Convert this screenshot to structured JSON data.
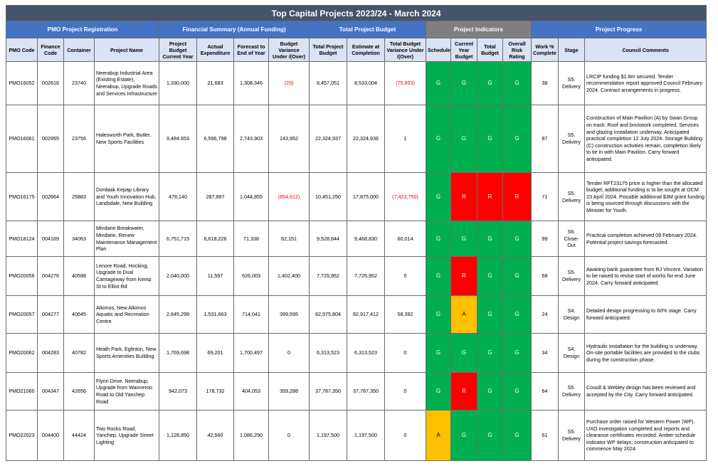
{
  "title": "Top Capital Projects 2023/24 - March 2024",
  "groups": {
    "registration": "PMO Project Registration",
    "financial": "Financial Summary (Annual Funding)",
    "total_budget": "Total Project Budget",
    "indicators": "Project Indicators",
    "progress": "Project Progress"
  },
  "columns": {
    "pmo_code": "PMO Code",
    "finance_code": "Finance Code",
    "container": "Container",
    "project_name": "Project Name",
    "budget_cy": "Project Budget Current Year",
    "actual": "Actual Expenditure",
    "forecast": "Forecast to End of Year",
    "variance": "Budget Variance Under /(Over)",
    "total_budget": "Total Project Budget",
    "estimate": "Estimate at Completion",
    "total_variance": "Total Budget Variance Under /(Over)",
    "schedule": "Schedule",
    "cy_budget": "Current Year Budget",
    "tot_budget": "Total Budget",
    "risk": "Overall Risk Rating",
    "work": "Work % Complete",
    "stage": "Stage",
    "comments": "Council Comments"
  },
  "indicator_colors": {
    "G": "#00b050",
    "R": "#ff0000",
    "A": "#ffc000"
  },
  "rows": [
    {
      "pmo": "PMO16052",
      "fin": "002616",
      "cont": "23740",
      "name": "Neerabup Industrial Area (Existing Estate), Neerabup, Upgrade Roads and Services Infrastructure",
      "bcy": "1,330,000",
      "act": "21,683",
      "fc": "1,308,346",
      "var": "(29)",
      "var_neg": true,
      "tpb": "8,457,051",
      "eac": "8,533,004",
      "tvar": "(75,953)",
      "tvar_neg": true,
      "sch": "G",
      "cyb": "G",
      "tb": "G",
      "risk": "G",
      "work": "38",
      "stage": "S5. Delivery",
      "comments": "LRCIP funding $1.8m secured. Tender recommendation report approved Council February 2024. Contract arrangements in progress."
    },
    {
      "pmo": "PMO16061",
      "fin": "002955",
      "cont": "23756",
      "name": "Halesworth Park, Butler, New Sports Facilities",
      "bcy": "9,484,653",
      "act": "6,596,798",
      "fc": "2,743,903",
      "var": "143,952",
      "var_neg": false,
      "tpb": "22,324,937",
      "eac": "22,324,936",
      "tvar": "1",
      "tvar_neg": false,
      "sch": "G",
      "cyb": "G",
      "tb": "G",
      "risk": "G",
      "work": "87",
      "stage": "S5. Delivery",
      "comments": "Construction of Main Pavilion (A) by Swan Group on track. Roof and brickwork completed. Services and glazing installation underway. Anticipated practical completion 12 July 2024. Storage Building (C) construction activities remain, completion likely to tie in with Main Pavilion. Carry forward anticipated."
    },
    {
      "pmo": "PMO16175",
      "fin": "002664",
      "cont": "25883",
      "name": "Dordaak Kepap Library and Youth Innovation Hub, Landsdale, New Building",
      "bcy": "478,140",
      "act": "287,897",
      "fc": "1,044,855",
      "var": "(854,612)",
      "var_neg": true,
      "tpb": "10,451,250",
      "eac": "17,875,000",
      "tvar": "(7,423,750)",
      "tvar_neg": true,
      "sch": "G",
      "cyb": "R",
      "tb": "R",
      "risk": "R",
      "work": "71",
      "stage": "S5. Delivery",
      "comments": "Tender RFT23175 price is higher than the allocated budget; additional funding is to be sought at OCM 23 April 2024. Possible additional $3M grant funding is being sourced through discussions with the Minister for Youth."
    },
    {
      "pmo": "PMO18124",
      "fin": "004169",
      "cont": "34063",
      "name": "Mindarie Breakwater, Mindarie, Renew Maintenance Management Plan",
      "bcy": "6,751,715",
      "act": "6,618,226",
      "fc": "71,338",
      "var": "62,151",
      "var_neg": false,
      "tpb": "9,528,844",
      "eac": "9,468,830",
      "tvar": "60,014",
      "tvar_neg": false,
      "sch": "G",
      "cyb": "G",
      "tb": "G",
      "risk": "G",
      "work": "99",
      "stage": "S6. Close-Out",
      "comments": "Practical completion achieved 09 February 2024. Potential project savings forecasted."
    },
    {
      "pmo": "PMO20056",
      "fin": "004276",
      "cont": "40598",
      "name": "Lenore Road, Hocking, Upgrade to Dual Carriageway from Kemp St to Elliot Rd",
      "bcy": "2,040,000",
      "act": "11,597",
      "fc": "626,003",
      "var": "1,402,400",
      "var_neg": false,
      "tpb": "7,725,952",
      "eac": "7,725,952",
      "tvar": "0",
      "tvar_neg": false,
      "sch": "G",
      "cyb": "R",
      "tb": "G",
      "risk": "G",
      "work": "68",
      "stage": "S5. Delivery",
      "comments": "Awaiting bank guarantee from RJ Vincent. Variation to be raised to revise start of works for end June 2024. Carry forward anticipated."
    },
    {
      "pmo": "PMO20057",
      "fin": "004277",
      "cont": "40645",
      "name": "Alkimos, New Alkimos Aquatic and Recreation Centre",
      "bcy": "2,645,299",
      "act": "1,531,663",
      "fc": "714,041",
      "var": "399,595",
      "var_neg": false,
      "tpb": "82,975,804",
      "eac": "82,917,412",
      "tvar": "58,392",
      "tvar_neg": false,
      "sch": "G",
      "cyb": "A",
      "tb": "G",
      "risk": "G",
      "work": "24",
      "stage": "S4. Design",
      "comments": "Detailed design progressing to 60% stage. Carry forward anticipated."
    },
    {
      "pmo": "PMO20062",
      "fin": "004283",
      "cont": "40782",
      "name": "Heath Park, Eglinton, New Sports Amenities Building",
      "bcy": "1,769,698",
      "act": "69,201",
      "fc": "1,700,497",
      "var": "0",
      "var_neg": false,
      "tpb": "6,313,523",
      "eac": "6,313,523",
      "tvar": "0",
      "tvar_neg": false,
      "sch": "G",
      "cyb": "G",
      "tb": "G",
      "risk": "G",
      "work": "34",
      "stage": "S4. Design",
      "comments": "Hydraulic installation for the building is underway. On-site portable facilities are provided to the clubs during the construction phase."
    },
    {
      "pmo": "PMO21060",
      "fin": "004347",
      "cont": "42656",
      "name": "Flynn Drive, Neerabup, Upgrade from Wanneroo Road to Old Yanchep Road",
      "bcy": "942,073",
      "act": "178,732",
      "fc": "404,053",
      "var": "359,288",
      "var_neg": false,
      "tpb": "37,787,350",
      "eac": "37,787,350",
      "tvar": "0",
      "tvar_neg": false,
      "sch": "G",
      "cyb": "R",
      "tb": "G",
      "risk": "G",
      "work": "64",
      "stage": "S5. Delivery",
      "comments": "Cossill & Webley design has been reviewed and accepted by the City. Carry forward anticipated."
    },
    {
      "pmo": "PMO22023",
      "fin": "004400",
      "cont": "44424",
      "name": "Two Rocks Road, Yanchep, Upgrade Street Lighting",
      "bcy": "1,128,850",
      "act": "42,560",
      "fc": "1,086,290",
      "var": "0",
      "var_neg": false,
      "tpb": "1,197,500",
      "eac": "1,197,500",
      "tvar": "0",
      "tvar_neg": false,
      "sch": "A",
      "cyb": "G",
      "tb": "G",
      "risk": "G",
      "work": "61",
      "stage": "S5. Delivery",
      "comments": "Purchase order raised for Western Power (WP). UXO investigation completed and reports and clearance certificates recorded. Amber schedule indicator WP delays; construction anticipated to commence May 2024."
    }
  ]
}
